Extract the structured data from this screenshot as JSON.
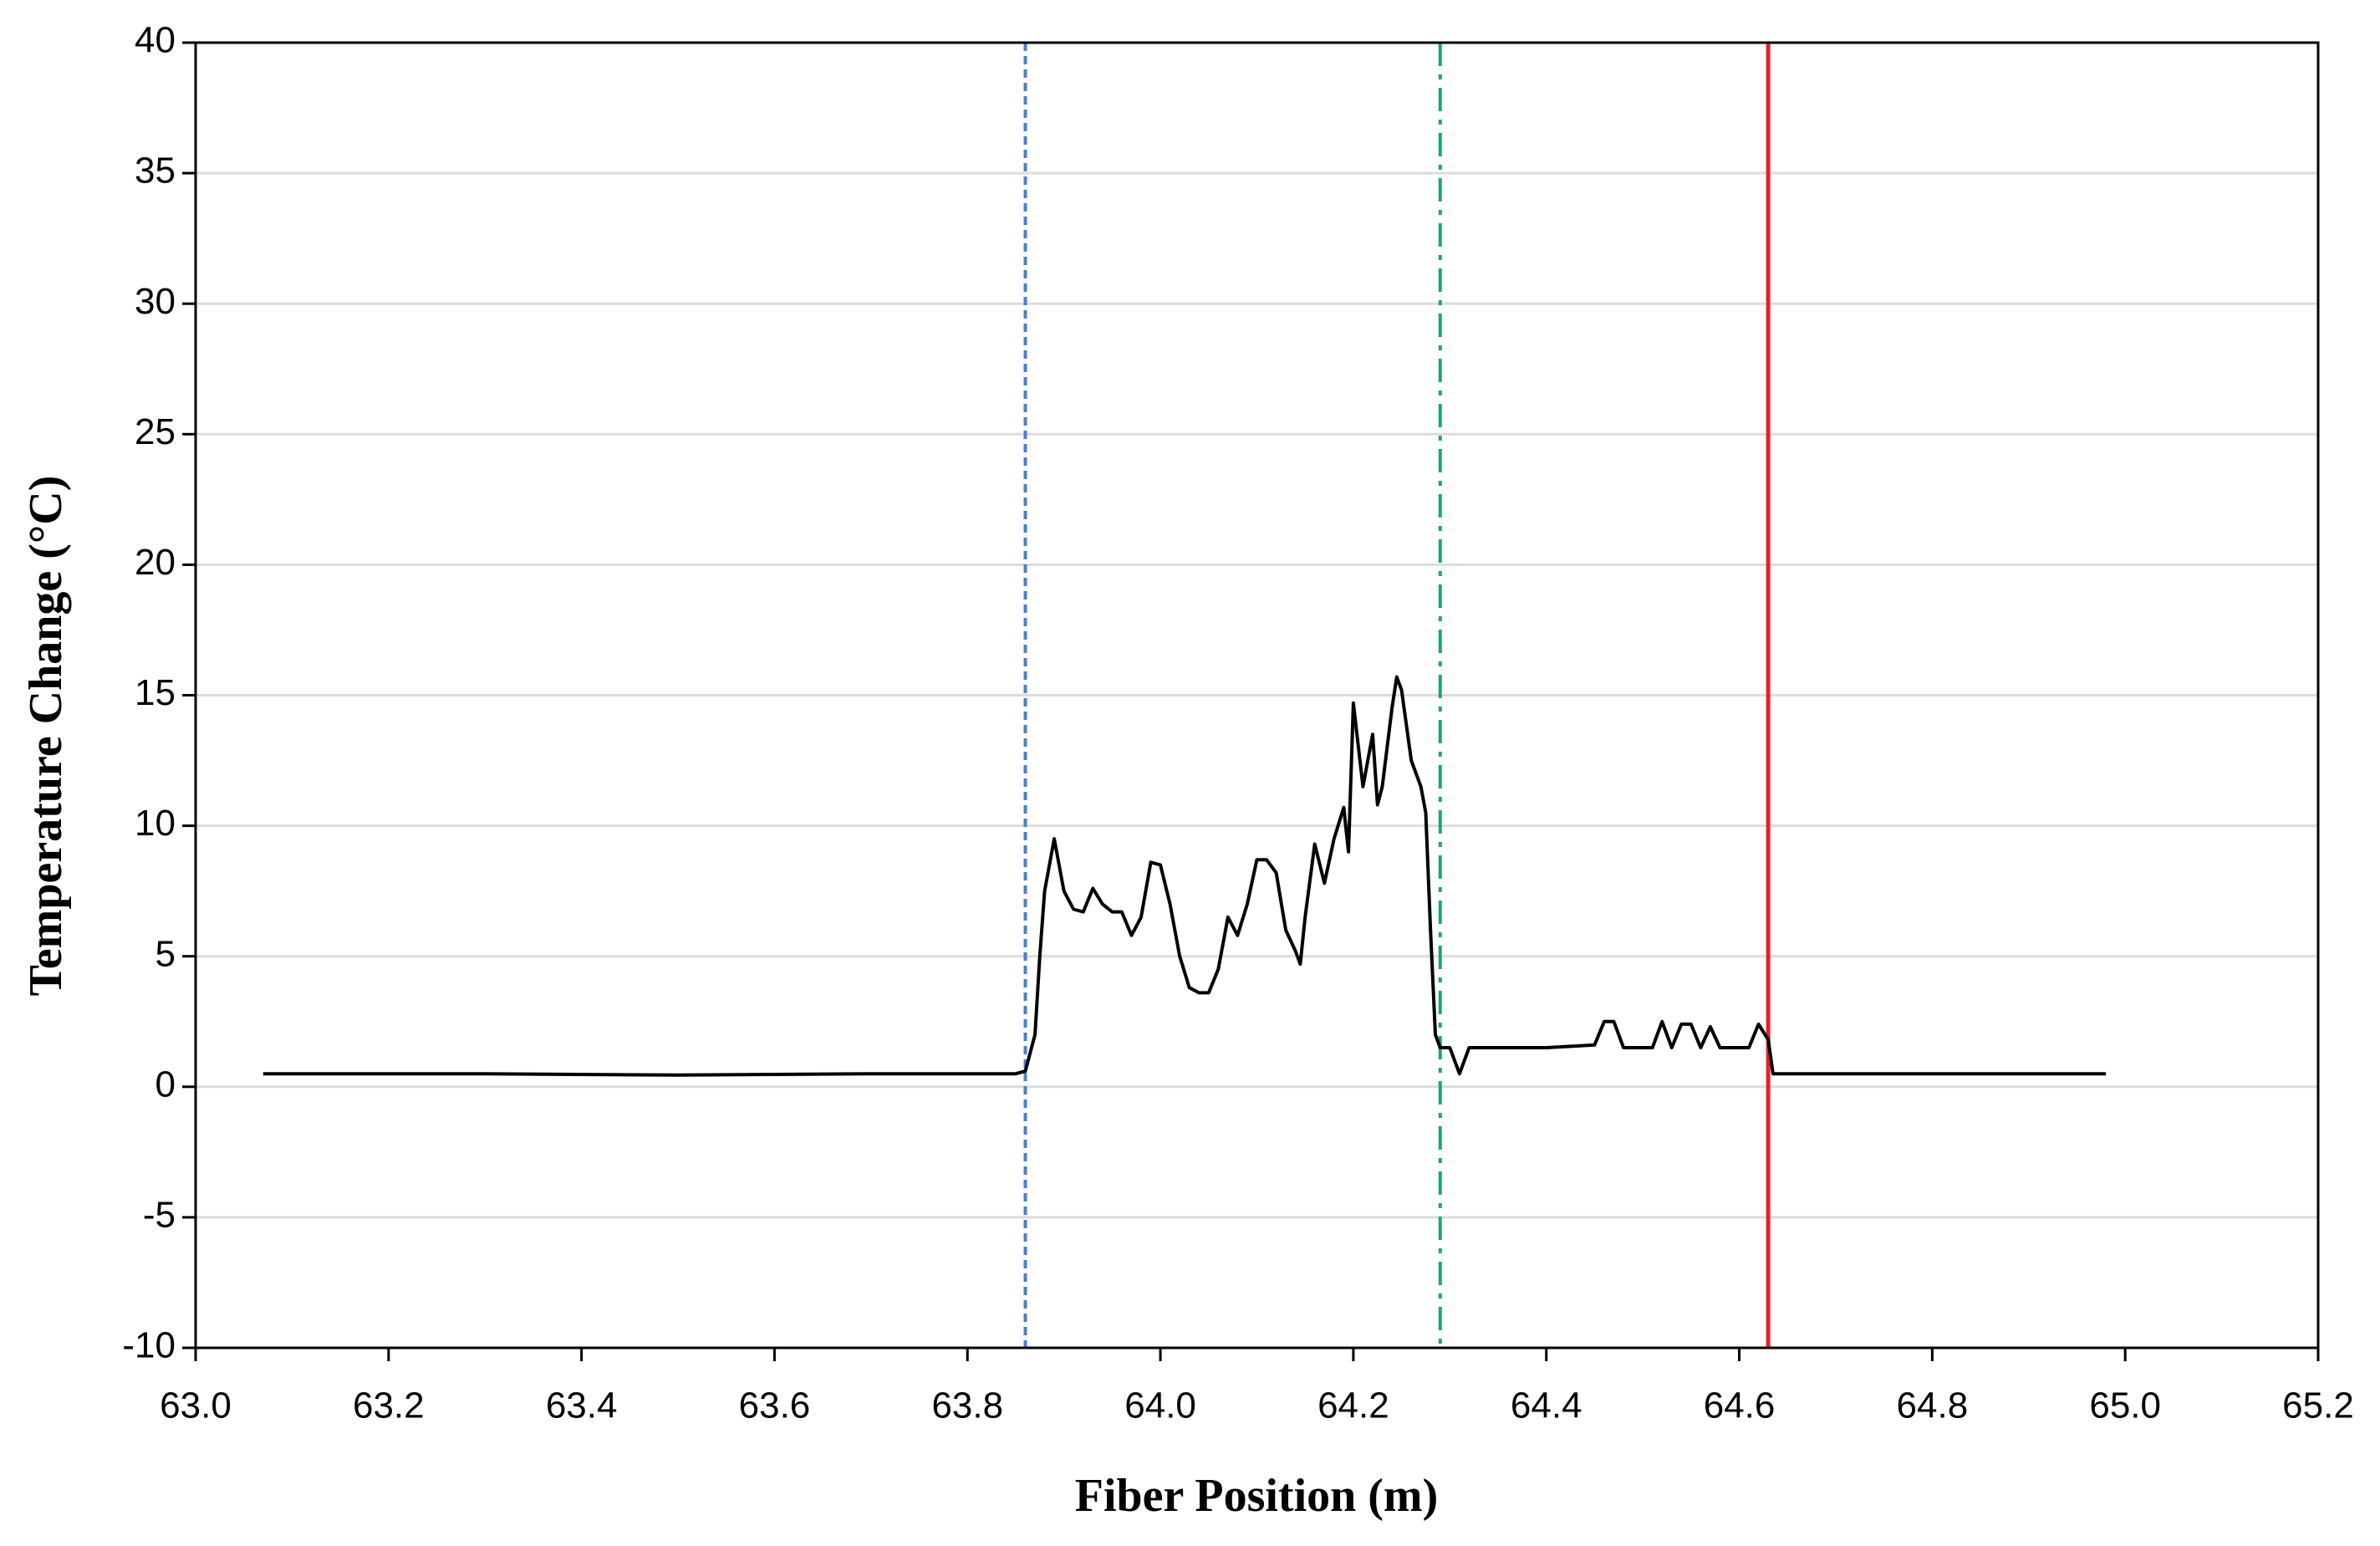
{
  "chart_data": {
    "type": "line",
    "xlabel": "Fiber Position (m)",
    "ylabel": "Temperature Change (°C)",
    "xlim": [
      63.0,
      65.2
    ],
    "ylim": [
      -10,
      40
    ],
    "xticks": [
      {
        "value": 63.0,
        "label": "63.0"
      },
      {
        "value": 63.2,
        "label": "63.2"
      },
      {
        "value": 63.4,
        "label": "63.4"
      },
      {
        "value": 63.6,
        "label": "63.6"
      },
      {
        "value": 63.8,
        "label": "63.8"
      },
      {
        "value": 64.0,
        "label": "64.0"
      },
      {
        "value": 64.2,
        "label": "64.2"
      },
      {
        "value": 64.4,
        "label": "64.4"
      },
      {
        "value": 64.6,
        "label": "64.6"
      },
      {
        "value": 64.8,
        "label": "64.8"
      },
      {
        "value": 65.0,
        "label": "65.0"
      },
      {
        "value": 65.2,
        "label": "65.2"
      }
    ],
    "yticks": [
      40,
      35,
      30,
      25,
      20,
      15,
      10,
      5,
      0,
      -5,
      -10
    ],
    "grid": true,
    "vlines": [
      {
        "x": 63.86,
        "color": "#4a7fd0",
        "style": "dashed"
      },
      {
        "x": 64.29,
        "color": "#1aa86a",
        "style": "dashdot"
      },
      {
        "x": 64.63,
        "color": "#e8202a",
        "style": "solid"
      }
    ],
    "series": [
      {
        "color": "#000000",
        "x": [
          63.07,
          63.3,
          63.5,
          63.7,
          63.85,
          63.86,
          63.87,
          63.875,
          63.88,
          63.89,
          63.9,
          63.91,
          63.92,
          63.93,
          63.94,
          63.95,
          63.96,
          63.97,
          63.98,
          63.99,
          64.0,
          64.01,
          64.02,
          64.03,
          64.04,
          64.05,
          64.06,
          64.07,
          64.08,
          64.09,
          64.1,
          64.11,
          64.12,
          64.13,
          64.14,
          64.145,
          64.15,
          64.16,
          64.17,
          64.18,
          64.19,
          64.195,
          64.2,
          64.21,
          64.22,
          64.225,
          64.23,
          64.24,
          64.245,
          64.25,
          64.26,
          64.27,
          64.275,
          64.28,
          64.285,
          64.29,
          64.3,
          64.31,
          64.32,
          64.4,
          64.45,
          64.46,
          64.47,
          64.48,
          64.51,
          64.52,
          64.53,
          64.54,
          64.55,
          64.56,
          64.57,
          64.58,
          64.61,
          64.62,
          64.63,
          64.635,
          64.8,
          64.98
        ],
        "values": [
          0.5,
          0.5,
          0.45,
          0.5,
          0.5,
          0.6,
          2,
          5,
          7.5,
          9.5,
          7.5,
          6.8,
          6.7,
          7.6,
          7,
          6.7,
          6.7,
          5.8,
          6.5,
          8.6,
          8.5,
          7,
          5,
          3.8,
          3.6,
          3.6,
          4.5,
          6.5,
          5.8,
          7,
          8.7,
          8.7,
          8.2,
          6,
          5.2,
          4.7,
          6.5,
          9.3,
          7.8,
          9.5,
          10.7,
          9,
          14.7,
          11.5,
          13.5,
          10.8,
          11.5,
          14.5,
          15.7,
          15.2,
          12.5,
          11.5,
          10.5,
          6,
          2,
          1.5,
          1.5,
          0.5,
          1.5,
          1.5,
          1.6,
          2.5,
          2.5,
          1.5,
          1.5,
          2.5,
          1.5,
          2.4,
          2.4,
          1.5,
          2.3,
          1.5,
          1.5,
          2.4,
          1.8,
          0.5,
          0.5,
          0.5
        ]
      }
    ]
  }
}
